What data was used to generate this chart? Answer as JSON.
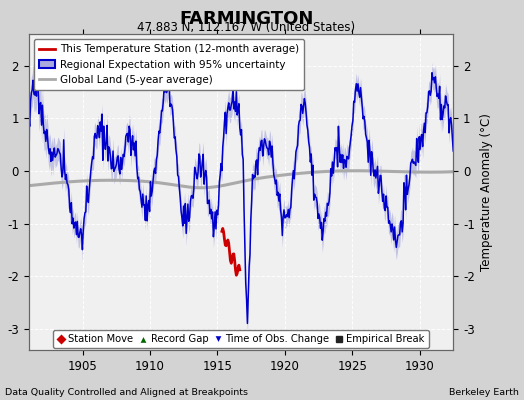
{
  "title": "FARMINGTON",
  "subtitle": "47.883 N, 112.167 W (United States)",
  "xlabel_left": "Data Quality Controlled and Aligned at Breakpoints",
  "xlabel_right": "Berkeley Earth",
  "ylabel": "Temperature Anomaly (°C)",
  "year_start": 1901.0,
  "year_end": 1932.5,
  "ylim": [
    -3.4,
    2.6
  ],
  "yticks": [
    -3,
    -2,
    -1,
    0,
    1,
    2
  ],
  "xticks": [
    1905,
    1910,
    1915,
    1920,
    1925,
    1930
  ],
  "bg_color": "#d3d3d3",
  "plot_bg_color": "#f0f0f0",
  "grid_color": "#ffffff",
  "blue_line_color": "#0000cc",
  "blue_fill_color": "#aaaadd",
  "red_line_color": "#cc0000",
  "gray_line_color": "#aaaaaa",
  "legend_items": [
    {
      "label": "This Temperature Station (12-month average)",
      "color": "#cc0000",
      "lw": 2
    },
    {
      "label": "Regional Expectation with 95% uncertainty",
      "color": "#0000cc",
      "lw": 2
    },
    {
      "label": "Global Land (5-year average)",
      "color": "#aaaaaa",
      "lw": 2
    }
  ],
  "bottom_legend": [
    {
      "label": "Station Move",
      "marker": "D",
      "color": "#cc0000"
    },
    {
      "label": "Record Gap",
      "marker": "^",
      "color": "#006600"
    },
    {
      "label": "Time of Obs. Change",
      "marker": "v",
      "color": "#0000cc"
    },
    {
      "label": "Empirical Break",
      "marker": "s",
      "color": "#222222"
    }
  ]
}
